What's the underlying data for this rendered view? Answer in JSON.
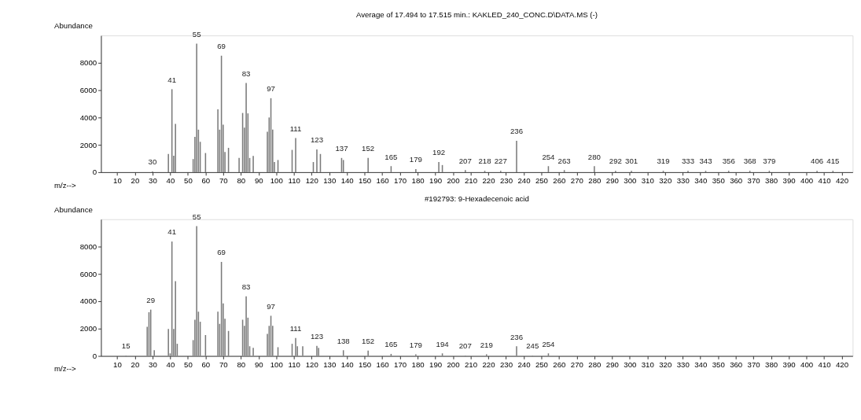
{
  "chart_data": [
    {
      "type": "bar",
      "title": "Average of 17.494 to 17.515 min.: KAKLED_240_CONC.D\\DATA.MS (-)",
      "xlabel": "m/z-->",
      "ylabel": "Abundance",
      "color": "#7a7a7a",
      "grid": false,
      "x": [
        30,
        39,
        41,
        42,
        43,
        53,
        54,
        55,
        56,
        57,
        60,
        67,
        68,
        69,
        70,
        71,
        73,
        79,
        81,
        82,
        83,
        84,
        85,
        87,
        95,
        96,
        97,
        98,
        99,
        101,
        109,
        111,
        121,
        123,
        125,
        137,
        138,
        152,
        165,
        179,
        192,
        194,
        207,
        218,
        227,
        236,
        254,
        263,
        280,
        292,
        301,
        319,
        333,
        343,
        356,
        368,
        379,
        406,
        415
      ],
      "values": [
        50,
        1330,
        6070,
        1200,
        3530,
        960,
        2590,
        9400,
        3110,
        2220,
        1400,
        4590,
        3110,
        8520,
        3480,
        1480,
        1780,
        1040,
        4330,
        3260,
        6520,
        4300,
        1040,
        1190,
        2960,
        4000,
        5410,
        3110,
        740,
        890,
        1630,
        2490,
        740,
        1660,
        1330,
        1040,
        890,
        1040,
        440,
        220,
        740,
        520,
        150,
        100,
        100,
        2300,
        440,
        150,
        440,
        100,
        100,
        100,
        100,
        100,
        100,
        100,
        100,
        100,
        100
      ],
      "annotations": [
        {
          "text": "30",
          "x": 30,
          "y": 50
        },
        {
          "text": "41",
          "x": 41,
          "y": 6070
        },
        {
          "text": "55",
          "x": 55,
          "y": 9400
        },
        {
          "text": "69",
          "x": 69,
          "y": 8520
        },
        {
          "text": "83",
          "x": 83,
          "y": 6520
        },
        {
          "text": "97",
          "x": 97,
          "y": 5410
        },
        {
          "text": "111",
          "x": 111,
          "y": 2490
        },
        {
          "text": "123",
          "x": 123,
          "y": 1660
        },
        {
          "text": "137",
          "x": 137,
          "y": 1040
        },
        {
          "text": "152",
          "x": 152,
          "y": 1040
        },
        {
          "text": "165",
          "x": 165,
          "y": 440
        },
        {
          "text": "179",
          "x": 179,
          "y": 220
        },
        {
          "text": "192",
          "x": 192,
          "y": 740
        },
        {
          "text": "207",
          "x": 207,
          "y": 150
        },
        {
          "text": "218",
          "x": 218,
          "y": 100
        },
        {
          "text": "227",
          "x": 227,
          "y": 100
        },
        {
          "text": "236",
          "x": 236,
          "y": 2300
        },
        {
          "text": "254",
          "x": 254,
          "y": 440
        },
        {
          "text": "263",
          "x": 263,
          "y": 150
        },
        {
          "text": "280",
          "x": 280,
          "y": 440
        },
        {
          "text": "292",
          "x": 292,
          "y": 100
        },
        {
          "text": "301",
          "x": 301,
          "y": 100
        },
        {
          "text": "319",
          "x": 319,
          "y": 100
        },
        {
          "text": "333",
          "x": 333,
          "y": 100
        },
        {
          "text": "343",
          "x": 343,
          "y": 100
        },
        {
          "text": "356",
          "x": 356,
          "y": 100
        },
        {
          "text": "368",
          "x": 368,
          "y": 100
        },
        {
          "text": "379",
          "x": 379,
          "y": 100
        },
        {
          "text": "406",
          "x": 406,
          "y": 100
        },
        {
          "text": "415",
          "x": 415,
          "y": 100
        }
      ],
      "xlim": [
        3,
        424
      ],
      "xticks": [
        10,
        20,
        30,
        40,
        50,
        60,
        70,
        80,
        90,
        100,
        110,
        120,
        130,
        140,
        150,
        160,
        170,
        180,
        190,
        200,
        210,
        220,
        230,
        240,
        250,
        260,
        270,
        280,
        290,
        300,
        310,
        320,
        330,
        340,
        350,
        360,
        370,
        380,
        390,
        400,
        410,
        420
      ],
      "ylim": [
        0,
        10000
      ],
      "yticks": [
        0,
        2000,
        4000,
        6000,
        8000
      ]
    },
    {
      "type": "bar",
      "title": "#192793: 9-Hexadecenoic acid",
      "xlabel": "m/z-->",
      "ylabel": "Abundance",
      "color": "#7a7a7a",
      "grid": false,
      "x": [
        15,
        27,
        28,
        29,
        31,
        39,
        40,
        41,
        42,
        43,
        44,
        53,
        54,
        55,
        56,
        57,
        60,
        67,
        68,
        69,
        70,
        71,
        73,
        81,
        82,
        83,
        84,
        85,
        87,
        95,
        96,
        97,
        98,
        101,
        109,
        111,
        112,
        115,
        123,
        124,
        138,
        152,
        165,
        179,
        194,
        207,
        219,
        236,
        245,
        254
      ],
      "values": [
        30,
        2130,
        3200,
        3390,
        420,
        1980,
        190,
        8370,
        1980,
        5470,
        890,
        1160,
        2650,
        9500,
        3240,
        2500,
        1530,
        3240,
        2350,
        6880,
        3840,
        2720,
        1830,
        2650,
        2200,
        4360,
        2800,
        710,
        590,
        1610,
        2200,
        2940,
        2200,
        640,
        890,
        1310,
        710,
        710,
        740,
        590,
        420,
        390,
        150,
        120,
        190,
        30,
        120,
        710,
        30,
        190
      ],
      "annotations": [
        {
          "text": "15",
          "x": 15,
          "y": 30
        },
        {
          "text": "29",
          "x": 29,
          "y": 3390
        },
        {
          "text": "41",
          "x": 41,
          "y": 8370
        },
        {
          "text": "55",
          "x": 55,
          "y": 9500
        },
        {
          "text": "69",
          "x": 69,
          "y": 6880
        },
        {
          "text": "83",
          "x": 83,
          "y": 4360
        },
        {
          "text": "97",
          "x": 97,
          "y": 2940
        },
        {
          "text": "111",
          "x": 111,
          "y": 1310
        },
        {
          "text": "123",
          "x": 123,
          "y": 740
        },
        {
          "text": "138",
          "x": 138,
          "y": 420
        },
        {
          "text": "152",
          "x": 152,
          "y": 390
        },
        {
          "text": "165",
          "x": 165,
          "y": 150
        },
        {
          "text": "179",
          "x": 179,
          "y": 120
        },
        {
          "text": "194",
          "x": 194,
          "y": 190
        },
        {
          "text": "207",
          "x": 207,
          "y": 30
        },
        {
          "text": "219",
          "x": 219,
          "y": 120
        },
        {
          "text": "236",
          "x": 236,
          "y": 710
        },
        {
          "text": "245",
          "x": 245,
          "y": 30
        },
        {
          "text": "254",
          "x": 254,
          "y": 190
        }
      ],
      "xlim": [
        3,
        424
      ],
      "xticks": [
        10,
        20,
        30,
        40,
        50,
        60,
        70,
        80,
        90,
        100,
        110,
        120,
        130,
        140,
        150,
        160,
        170,
        180,
        190,
        200,
        210,
        220,
        230,
        240,
        250,
        260,
        270,
        280,
        290,
        300,
        310,
        320,
        330,
        340,
        350,
        360,
        370,
        380,
        390,
        400,
        410,
        420
      ],
      "ylim": [
        0,
        10000
      ],
      "yticks": [
        0,
        2000,
        4000,
        6000,
        8000
      ]
    }
  ]
}
